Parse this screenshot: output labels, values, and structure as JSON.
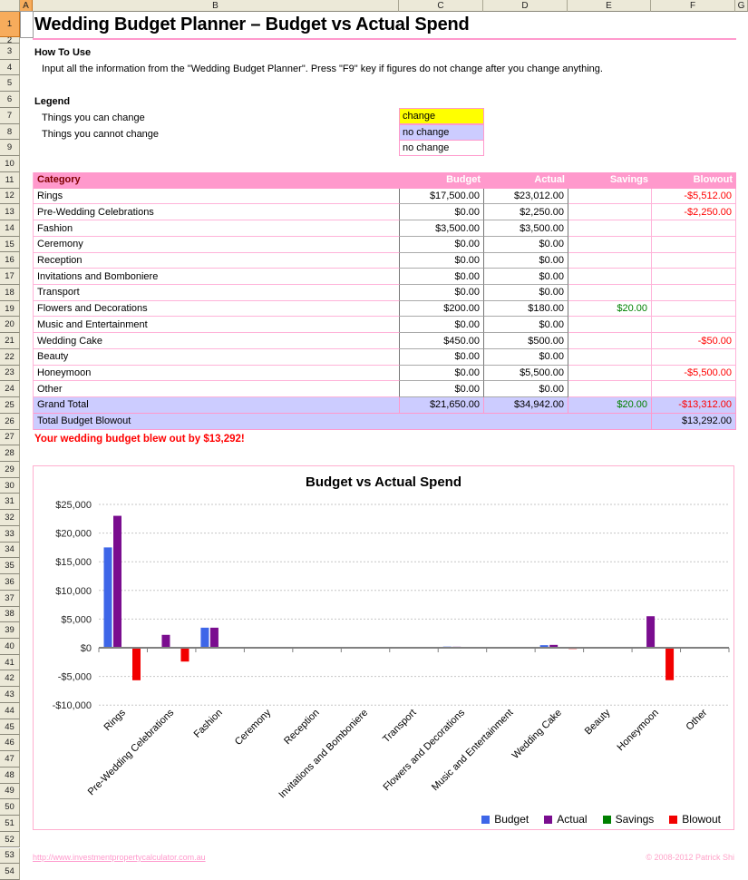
{
  "sheet": {
    "column_headers": [
      "A",
      "B",
      "C",
      "D",
      "E",
      "F",
      "G"
    ],
    "selected_column": "A",
    "selected_row": 1,
    "row_count": 54
  },
  "header": {
    "title": "Wedding Budget Planner – Budget vs Actual Spend"
  },
  "how_to_use": {
    "heading": "How To Use",
    "text": "Input all the information from the \"Wedding Budget Planner\". Press \"F9\" key if figures do not change after you change anything."
  },
  "legend": {
    "heading": "Legend",
    "items": [
      {
        "label": "Things you can change",
        "cell": "change",
        "bg": "#FFFF00"
      },
      {
        "label": "Things you cannot change",
        "cell": "no change",
        "bg": "#CCCCFF"
      },
      {
        "label": "",
        "cell": "no change",
        "bg": "#FFFFFF"
      }
    ]
  },
  "table": {
    "columns": [
      "Category",
      "Budget",
      "Actual",
      "Savings",
      "Blowout"
    ],
    "rows": [
      {
        "category": "Rings",
        "budget": "$17,500.00",
        "actual": "$23,012.00",
        "savings": "",
        "blowout": "-$5,512.00"
      },
      {
        "category": "Pre-Wedding Celebrations",
        "budget": "$0.00",
        "actual": "$2,250.00",
        "savings": "",
        "blowout": "-$2,250.00"
      },
      {
        "category": "Fashion",
        "budget": "$3,500.00",
        "actual": "$3,500.00",
        "savings": "",
        "blowout": ""
      },
      {
        "category": "Ceremony",
        "budget": "$0.00",
        "actual": "$0.00",
        "savings": "",
        "blowout": ""
      },
      {
        "category": "Reception",
        "budget": "$0.00",
        "actual": "$0.00",
        "savings": "",
        "blowout": ""
      },
      {
        "category": "Invitations and Bomboniere",
        "budget": "$0.00",
        "actual": "$0.00",
        "savings": "",
        "blowout": ""
      },
      {
        "category": "Transport",
        "budget": "$0.00",
        "actual": "$0.00",
        "savings": "",
        "blowout": ""
      },
      {
        "category": "Flowers and Decorations",
        "budget": "$200.00",
        "actual": "$180.00",
        "savings": "$20.00",
        "blowout": ""
      },
      {
        "category": "Music and Entertainment",
        "budget": "$0.00",
        "actual": "$0.00",
        "savings": "",
        "blowout": ""
      },
      {
        "category": "Wedding Cake",
        "budget": "$450.00",
        "actual": "$500.00",
        "savings": "",
        "blowout": "-$50.00"
      },
      {
        "category": "Beauty",
        "budget": "$0.00",
        "actual": "$0.00",
        "savings": "",
        "blowout": ""
      },
      {
        "category": "Honeymoon",
        "budget": "$0.00",
        "actual": "$5,500.00",
        "savings": "",
        "blowout": "-$5,500.00"
      },
      {
        "category": "Other",
        "budget": "$0.00",
        "actual": "$0.00",
        "savings": "",
        "blowout": ""
      }
    ],
    "grand_total": {
      "category": "Grand Total",
      "budget": "$21,650.00",
      "actual": "$34,942.00",
      "savings": "$20.00",
      "blowout": "-$13,312.00"
    },
    "total_blowout": {
      "label": "Total Budget Blowout",
      "value": "$13,292.00"
    }
  },
  "warning": "Your wedding budget blew out by $13,292!",
  "chart_data": {
    "type": "bar",
    "title": "Budget vs Actual Spend",
    "categories": [
      "Rings",
      "Pre-Wedding Celebrations",
      "Fashion",
      "Ceremony",
      "Reception",
      "Invitations and Bomboniere",
      "Transport",
      "Flowers and Decorations",
      "Music and Entertainment",
      "Wedding Cake",
      "Beauty",
      "Honeymoon",
      "Other"
    ],
    "series": [
      {
        "name": "Budget",
        "color": "#3E66E8",
        "values": [
          17500,
          0,
          3500,
          0,
          0,
          0,
          0,
          200,
          0,
          450,
          0,
          0,
          0
        ]
      },
      {
        "name": "Actual",
        "color": "#7A0D8F",
        "values": [
          23012,
          2250,
          3500,
          0,
          0,
          0,
          0,
          180,
          0,
          500,
          0,
          5500,
          0
        ]
      },
      {
        "name": "Savings",
        "color": "#008000",
        "values": [
          0,
          0,
          0,
          0,
          0,
          0,
          0,
          20,
          0,
          0,
          0,
          0,
          0
        ]
      },
      {
        "name": "Blowout",
        "color": "#F20000",
        "values": [
          -5512,
          -2250,
          0,
          0,
          0,
          0,
          0,
          0,
          0,
          -50,
          0,
          -5500,
          0
        ]
      }
    ],
    "ylim": [
      -10000,
      25000
    ],
    "ytick_step": 5000,
    "ytick_labels": [
      "$25,000",
      "$20,000",
      "$15,000",
      "$10,000",
      "$5,000",
      "$0",
      "-$5,000",
      "-$10,000"
    ],
    "grid": true,
    "legend_position": "bottom-right"
  },
  "footer": {
    "link": "http://www.investmentpropertycalculator.com.au",
    "copyright": "© 2008-2012 Patrick Shi"
  }
}
